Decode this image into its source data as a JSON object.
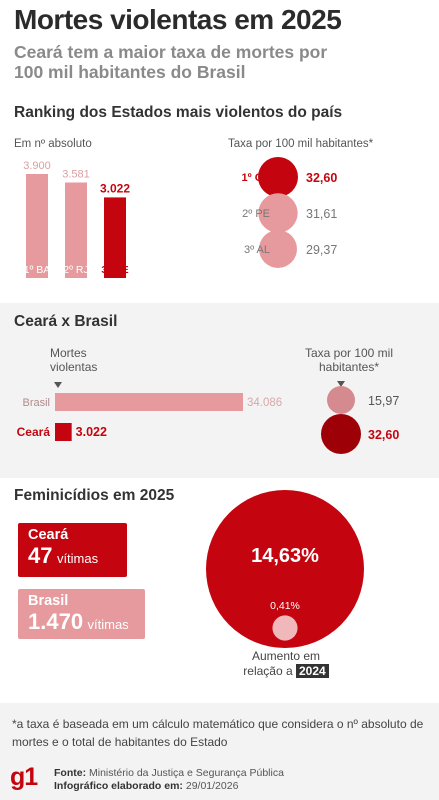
{
  "header": {
    "title": "Mortes violentas em 2025",
    "subtitle": "Ceará tem a maior taxa de mortes por 100 mil habitantes do Brasil"
  },
  "ranking": {
    "section_title": "Ranking dos Estados mais violentos do país",
    "abs_label": "Em nº absoluto",
    "rate_label": "Taxa por 100 mil habitantes*"
  },
  "comparison": {
    "section_title": "Ceará x Brasil",
    "mortes_label": "Mortes violentas",
    "taxa_label": "Taxa por 100 mil habitantes*"
  },
  "feminicidios": {
    "section_title": "Feminicídios em 2025",
    "ceara": {
      "name": "Ceará",
      "number": "47",
      "unit": "vítimas"
    },
    "brasil": {
      "name": "Brasil",
      "number": "1.470",
      "unit": "vítimas"
    },
    "increase_label": "Aumento em relação a",
    "increase_year": "2024"
  },
  "footer": {
    "note": "*a taxa é baseada em um cálculo matemático que considera o nº absoluto de mortes e o total de habitantes do Estado",
    "logo": "g1",
    "source_label": "Fonte:",
    "source": "Ministério da Justiça e Segurança Pública",
    "credit_label": "Infográfico elaborado em:",
    "credit_date": "29/01/2026"
  },
  "colors": {
    "primary": "#c4050f",
    "light": "#e69a9e",
    "dark": "#9e0008"
  },
  "chart_data": [
    {
      "type": "bar",
      "categories": [
        "1º BA",
        "2º RJ",
        "3º CE"
      ],
      "values": [
        3900,
        3581,
        3022
      ],
      "labels": [
        "3.900",
        "3.581",
        "3.022"
      ],
      "highlight": "3º CE"
    },
    {
      "type": "scatter",
      "categories": [
        "1º CE",
        "2º PE",
        "3º AL"
      ],
      "values": [
        32.6,
        31.61,
        29.37
      ],
      "labels": [
        "32,60",
        "31,61",
        "29,37"
      ],
      "highlight": "1º CE"
    },
    {
      "type": "bar",
      "categories": [
        "Brasil",
        "Ceará"
      ],
      "values": [
        34086,
        3022
      ],
      "labels": [
        "34.086",
        "3.022"
      ]
    },
    {
      "type": "scatter",
      "categories": [
        "Brasil",
        "Ceará"
      ],
      "values": [
        15.97,
        32.6
      ],
      "labels": [
        "15,97",
        "32,60"
      ]
    },
    {
      "type": "scatter",
      "categories": [
        "Ceará",
        "Brasil"
      ],
      "values": [
        14.63,
        0.41
      ],
      "labels": [
        "14,63%",
        "0,41%"
      ]
    }
  ]
}
